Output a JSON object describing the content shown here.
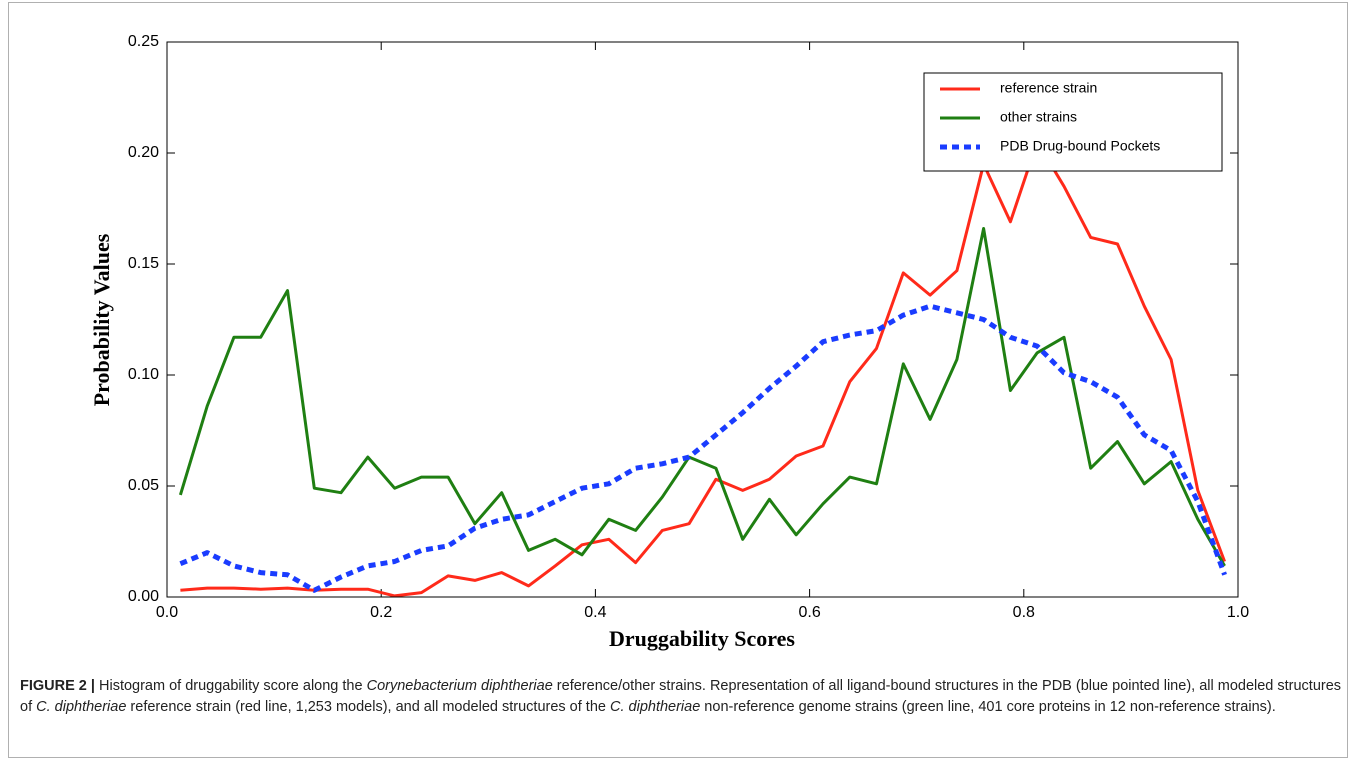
{
  "chart_data": {
    "type": "line",
    "xlabel": "Druggability Scores",
    "ylabel": "Probability Values",
    "x": [
      0.0125,
      0.0375,
      0.0625,
      0.0875,
      0.1125,
      0.1375,
      0.1625,
      0.1875,
      0.2125,
      0.2375,
      0.2625,
      0.2875,
      0.3125,
      0.3375,
      0.3625,
      0.3875,
      0.4125,
      0.4375,
      0.4625,
      0.4875,
      0.5125,
      0.5375,
      0.5625,
      0.5875,
      0.6125,
      0.6375,
      0.6625,
      0.6875,
      0.7125,
      0.7375,
      0.7625,
      0.7875,
      0.8125,
      0.8375,
      0.8625,
      0.8875,
      0.9125,
      0.9375,
      0.9625,
      0.9875
    ],
    "series": [
      {
        "name": "reference strain",
        "color": "#ff2a1a",
        "style": "solid",
        "values": [
          0.003,
          0.004,
          0.004,
          0.0035,
          0.004,
          0.003,
          0.0035,
          0.0035,
          0.0005,
          0.002,
          0.0095,
          0.0075,
          0.011,
          0.005,
          0.014,
          0.0235,
          0.026,
          0.0155,
          0.03,
          0.033,
          0.053,
          0.048,
          0.053,
          0.0635,
          0.068,
          0.097,
          0.112,
          0.146,
          0.136,
          0.147,
          0.195,
          0.169,
          0.205,
          0.185,
          0.162,
          0.159,
          0.131,
          0.107,
          0.048,
          0.016
        ]
      },
      {
        "name": "other strains",
        "color": "#1f7f12",
        "style": "solid",
        "values": [
          0.046,
          0.086,
          0.117,
          0.117,
          0.138,
          0.049,
          0.047,
          0.063,
          0.049,
          0.054,
          0.054,
          0.033,
          0.047,
          0.021,
          0.026,
          0.019,
          0.035,
          0.03,
          0.045,
          0.063,
          0.058,
          0.026,
          0.044,
          0.028,
          0.042,
          0.054,
          0.051,
          0.105,
          0.08,
          0.107,
          0.166,
          0.093,
          0.11,
          0.117,
          0.058,
          0.07,
          0.051,
          0.061,
          0.035,
          0.014
        ]
      },
      {
        "name": "PDB Drug-bound Pockets",
        "color": "#1a3cff",
        "style": "dashed",
        "values": [
          0.015,
          0.02,
          0.014,
          0.011,
          0.01,
          0.003,
          0.009,
          0.014,
          0.016,
          0.021,
          0.023,
          0.031,
          0.035,
          0.037,
          0.043,
          0.049,
          0.051,
          0.058,
          0.06,
          0.063,
          0.073,
          0.083,
          0.094,
          0.104,
          0.115,
          0.118,
          0.12,
          0.127,
          0.131,
          0.128,
          0.125,
          0.117,
          0.113,
          0.101,
          0.097,
          0.09,
          0.073,
          0.066,
          0.043,
          0.01
        ]
      }
    ],
    "xlim": [
      0,
      1
    ],
    "xticks": [
      {
        "value": 0,
        "label": "0.0"
      },
      0.2,
      0.4,
      0.6,
      0.8,
      {
        "value": 1,
        "label": "1.0"
      }
    ],
    "ylim": [
      0,
      0.25
    ],
    "yticks": [
      {
        "value": 0,
        "label": "0.00"
      },
      0.05,
      {
        "value": 0.1,
        "label": "0.10"
      },
      0.15,
      {
        "value": 0.2,
        "label": "0.20"
      },
      0.25
    ],
    "legend": "upper right",
    "caption": {
      "label": "FIGURE 2 |",
      "parts": [
        "Histogram of druggability score along the ",
        "Corynebacterium diphtheriae",
        " reference/other strains. Representation of all ligand-bound structures in the PDB (blue pointed line), all modeled structures of ",
        "C. diphtheriae",
        " reference strain (red line, 1,253 models), and all modeled structures of the ",
        "C. diphtheriae",
        " non-reference genome strains (green line, 401 core proteins in 12 non-reference strains)."
      ]
    }
  }
}
